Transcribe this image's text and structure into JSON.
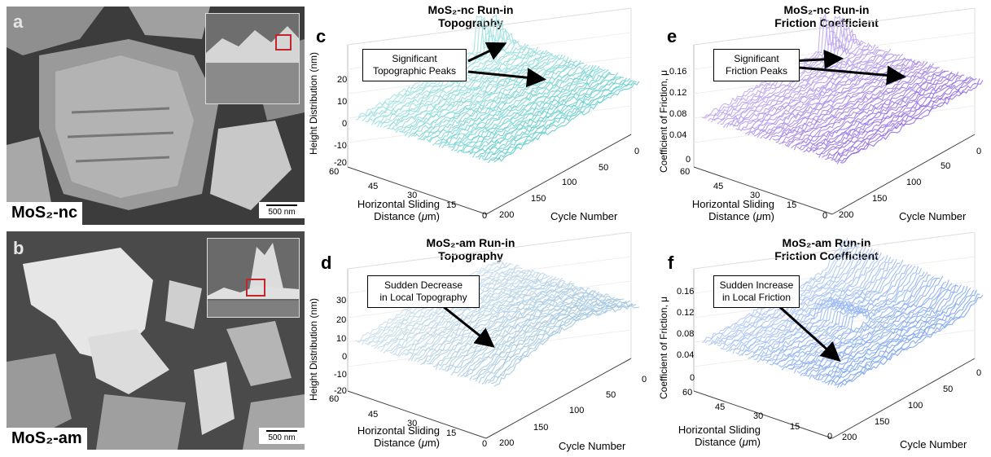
{
  "panels": {
    "a": {
      "letter": "a",
      "sample": "MoS₂-nc",
      "scale": "500 nm"
    },
    "b": {
      "letter": "b",
      "sample": "MoS₂-am",
      "scale": "500 nm"
    },
    "c": {
      "letter": "c",
      "title_line1": "MoS₂-nc Run-in",
      "title_line2": "Topography",
      "annotation": "Significant\nTopographic Peaks",
      "ylabel": "Height Distribution (nm)",
      "xlabel": "Horizontal Sliding\nDistance (μm)",
      "zlabel": "Cycle Number",
      "yticks": [
        "20",
        "10",
        "0",
        "-10",
        "-20"
      ],
      "xticks": [
        "60",
        "45",
        "30",
        "15",
        "0"
      ],
      "zticks": [
        "200",
        "150",
        "100",
        "50",
        "0"
      ]
    },
    "d": {
      "letter": "d",
      "title_line1": "MoS₂-am Run-in",
      "title_line2": "Topography",
      "annotation": "Sudden Decrease\nin Local Topography",
      "ylabel": "Height Distribution (nm)",
      "xlabel": "Horizontal Sliding\nDistance (μm)",
      "zlabel": "Cycle Number",
      "yticks": [
        "30",
        "20",
        "10",
        "0",
        "-10",
        "-20"
      ],
      "xticks": [
        "60",
        "45",
        "30",
        "15",
        "0"
      ],
      "zticks": [
        "200",
        "150",
        "100",
        "50",
        "0"
      ]
    },
    "e": {
      "letter": "e",
      "title_line1": "MoS₂-nc Run-in",
      "title_line2": "Friction Coefficient",
      "annotation": "Significant\nFriction Peaks",
      "ylabel": "Coefficient of Friction, μ",
      "xlabel": "Horizontal Sliding\nDistance (μm)",
      "zlabel": "Cycle Number",
      "yticks": [
        "0.16",
        "0.12",
        "0.08",
        "0.04",
        "0"
      ],
      "xticks": [
        "60",
        "45",
        "30",
        "15",
        "0"
      ],
      "zticks": [
        "200",
        "150",
        "100",
        "50",
        "0"
      ]
    },
    "f": {
      "letter": "f",
      "title_line1": "MoS₂-am Run-in",
      "title_line2": "Friction Coefficient",
      "annotation": "Sudden Increase\nin Local Friction",
      "ylabel": "Coefficient of Friction, μ",
      "xlabel": "Horizontal Sliding\nDistance (μm)",
      "zlabel": "Cycle Number",
      "yticks": [
        "0.16",
        "0.12",
        "0.08",
        "0.04",
        "0"
      ],
      "xticks": [
        "60",
        "45",
        "30",
        "15",
        "0"
      ],
      "zticks": [
        "200",
        "150",
        "100",
        "50",
        "0"
      ]
    }
  },
  "colors": {
    "nc_topography": "#3ec2c0",
    "nc_friction": "#7a4be0",
    "am_topography": "#8ab8d8",
    "am_friction": "#5a8ef0"
  }
}
